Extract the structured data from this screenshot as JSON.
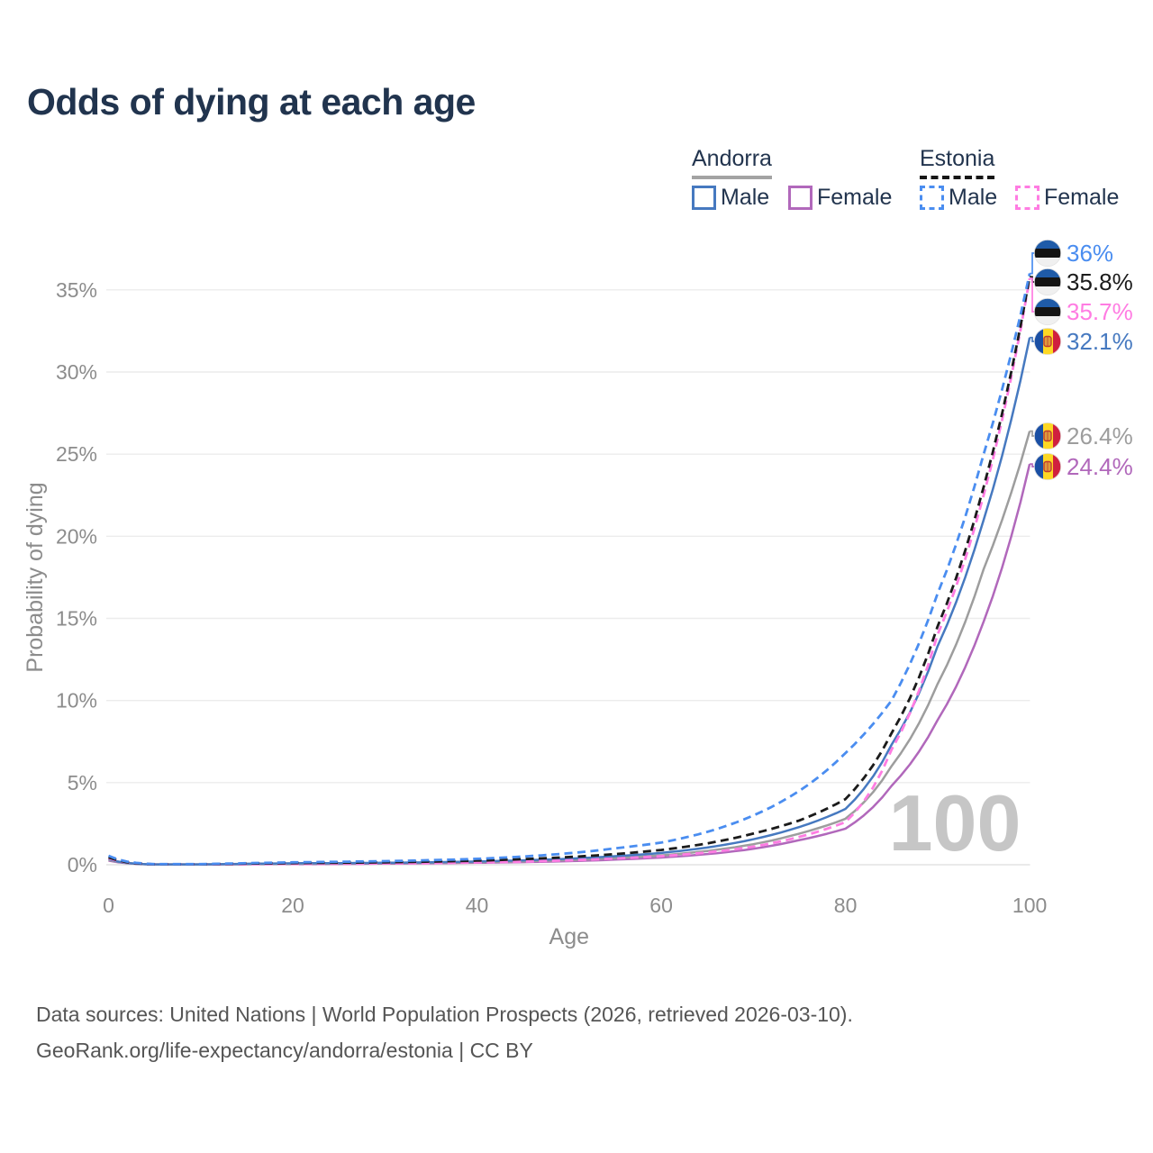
{
  "title": "Odds of dying at each age",
  "watermark_age": "100",
  "legend": {
    "groups": [
      {
        "label": "Andorra",
        "line_style": "solid",
        "underline_color": "#a3a3a3",
        "items": [
          {
            "label": "Male",
            "color": "#4679c0"
          },
          {
            "label": "Female",
            "color": "#b168bb"
          }
        ]
      },
      {
        "label": "Estonia",
        "line_style": "dashed",
        "underline_color": "#161616",
        "items": [
          {
            "label": "Male",
            "color": "#4a8df0"
          },
          {
            "label": "Female",
            "color": "#ff7ce2"
          }
        ]
      }
    ]
  },
  "footer": {
    "line1": "Data sources: United Nations | World Population Prospects (2026, retrieved 2026-03-10).",
    "line2": "GeoRank.org/life-expectancy/andorra/estonia | CC BY"
  },
  "colors": {
    "title": "#21344e",
    "axis_text": "#8c8c8c",
    "gridline": "#ececec",
    "zero_line": "#e3e3e3",
    "watermark": "#c6c6c6",
    "footer_text": "#555555"
  },
  "flags": {
    "estonia": {
      "stripes": [
        "#1f5ba8",
        "#141414",
        "#f0f0f0"
      ],
      "orientation": "horizontal"
    },
    "andorra": {
      "stripes": [
        "#1a4fa4",
        "#fdd824",
        "#d0203e"
      ],
      "orientation": "vertical",
      "emblem_fill": "#e09c3c",
      "emblem_stroke": "#c03b30"
    }
  },
  "chart_data": {
    "type": "line",
    "title": "Odds of dying at each age",
    "xlabel": "Age",
    "ylabel": "Probability of dying",
    "xlim": [
      0,
      100
    ],
    "ylim": [
      0,
      37.6
    ],
    "x_ticks": [
      0,
      20,
      40,
      60,
      80,
      100
    ],
    "y_ticks": [
      0,
      5,
      10,
      15,
      20,
      25,
      30,
      35
    ],
    "y_tick_suffix": "%",
    "grid": "horizontal-only",
    "legend_position": "top-right",
    "ages": [
      0,
      5,
      10,
      15,
      20,
      25,
      30,
      35,
      40,
      45,
      50,
      55,
      60,
      65,
      70,
      75,
      80,
      85,
      90,
      95,
      100
    ],
    "series": [
      {
        "id": "estonia-male",
        "name": "Estonia Male",
        "country": "Estonia",
        "sex": "Male",
        "color": "#4a8df0",
        "dashed": true,
        "flag": "estonia",
        "end_label": "36%",
        "values": [
          0.55,
          0.04,
          0.04,
          0.1,
          0.15,
          0.18,
          0.22,
          0.28,
          0.36,
          0.5,
          0.7,
          1.0,
          1.35,
          2.0,
          3.0,
          4.5,
          6.8,
          10.0,
          16.5,
          25.0,
          36.0
        ]
      },
      {
        "id": "estonia-both",
        "name": "Estonia Both sexes",
        "country": "Estonia",
        "sex": "Both",
        "color": "#1b1b1b",
        "dashed": true,
        "flag": "estonia",
        "end_label": "35.8%",
        "values": [
          0.45,
          0.03,
          0.03,
          0.07,
          0.1,
          0.12,
          0.15,
          0.19,
          0.25,
          0.34,
          0.47,
          0.65,
          0.9,
          1.3,
          1.9,
          2.7,
          4.0,
          8.0,
          14.5,
          23.0,
          35.8
        ]
      },
      {
        "id": "estonia-female",
        "name": "Estonia Female",
        "country": "Estonia",
        "sex": "Female",
        "color": "#ff7ce2",
        "dashed": true,
        "flag": "estonia",
        "end_label": "35.7%",
        "values": [
          0.4,
          0.03,
          0.02,
          0.04,
          0.05,
          0.06,
          0.08,
          0.1,
          0.14,
          0.19,
          0.27,
          0.38,
          0.52,
          0.75,
          1.1,
          1.7,
          2.6,
          7.0,
          14.0,
          22.5,
          35.7
        ]
      },
      {
        "id": "andorra-male",
        "name": "Andorra Male",
        "country": "Andorra",
        "sex": "Male",
        "color": "#4679c0",
        "dashed": false,
        "flag": "andorra",
        "end_label": "32.1%",
        "values": [
          0.35,
          0.02,
          0.02,
          0.06,
          0.09,
          0.1,
          0.12,
          0.15,
          0.2,
          0.27,
          0.37,
          0.52,
          0.72,
          1.05,
          1.55,
          2.3,
          3.4,
          7.3,
          13.3,
          21.0,
          32.1
        ]
      },
      {
        "id": "andorra-both",
        "name": "Andorra Both sexes",
        "country": "Andorra",
        "sex": "Both",
        "color": "#9d9d9d",
        "dashed": false,
        "flag": "andorra",
        "end_label": "26.4%",
        "values": [
          0.3,
          0.02,
          0.02,
          0.04,
          0.06,
          0.08,
          0.1,
          0.12,
          0.16,
          0.21,
          0.29,
          0.41,
          0.57,
          0.84,
          1.25,
          1.9,
          2.8,
          6.0,
          11.0,
          18.0,
          26.4
        ]
      },
      {
        "id": "andorra-female",
        "name": "Andorra Female",
        "country": "Andorra",
        "sex": "Female",
        "color": "#b168bb",
        "dashed": false,
        "flag": "andorra",
        "end_label": "24.4%",
        "values": [
          0.25,
          0.02,
          0.02,
          0.03,
          0.04,
          0.05,
          0.07,
          0.09,
          0.12,
          0.16,
          0.22,
          0.31,
          0.44,
          0.65,
          0.97,
          1.5,
          2.2,
          4.8,
          8.8,
          14.8,
          24.4
        ]
      }
    ]
  }
}
